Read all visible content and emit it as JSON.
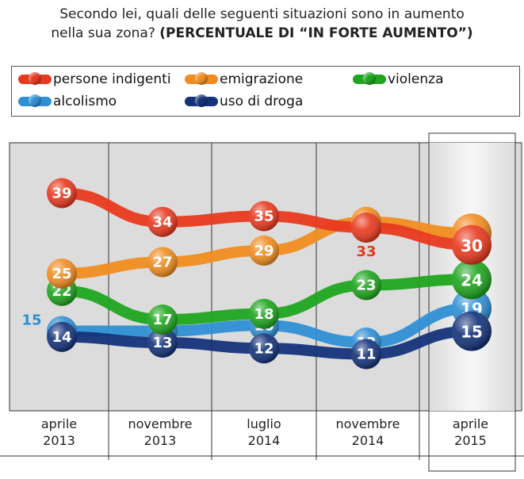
{
  "title": {
    "line1": "Secondo lei, quali delle seguenti situazioni sono in aumento",
    "line2_prefix": "nella sua zona? ",
    "line2_bold": "(PERCENTUALE DI “IN FORTE AUMENTO”)"
  },
  "legend": [
    {
      "name": "persone indigenti",
      "color": "#e8391f"
    },
    {
      "name": "emigrazione",
      "color": "#f08c20"
    },
    {
      "name": "violenza",
      "color": "#1fa51f"
    },
    {
      "name": "alcolismo",
      "color": "#2e8fd3"
    },
    {
      "name": "uso di droga",
      "color": "#14337a"
    }
  ],
  "chart_data": {
    "type": "line",
    "categories": [
      [
        "aprile",
        "2013"
      ],
      [
        "novembre",
        "2013"
      ],
      [
        "luglio",
        "2014"
      ],
      [
        "novembre",
        "2014"
      ],
      [
        "aprile",
        "2015"
      ]
    ],
    "ylim": [
      5,
      45
    ],
    "grid": "vertical separators",
    "highlight_category": 4,
    "series": [
      {
        "name": "persone indigenti",
        "color": "#e8391f",
        "values": [
          39,
          34,
          35,
          33,
          30
        ],
        "label_colors": [
          "#ffffff",
          "#ffffff",
          "#ffffff",
          "#e8391f",
          "#ffffff"
        ]
      },
      {
        "name": "emigrazione",
        "color": "#f08c20",
        "values": [
          25,
          27,
          29,
          34,
          32
        ],
        "label_colors": [
          "#ffffff",
          "#ffffff",
          "#ffffff",
          "#ffffff",
          "#ffffff"
        ]
      },
      {
        "name": "violenza",
        "color": "#1fa51f",
        "values": [
          22,
          17,
          18,
          23,
          24
        ],
        "label_colors": [
          "#ffffff",
          "#ffffff",
          "#ffffff",
          "#ffffff",
          "#ffffff"
        ]
      },
      {
        "name": "alcolismo",
        "color": "#2e8fd3",
        "values": [
          15,
          15,
          16,
          13,
          19
        ],
        "label_colors": [
          "#2e8fd3",
          "#ffffff",
          "#ffffff",
          "#ffffff",
          "#ffffff"
        ]
      },
      {
        "name": "uso di droga",
        "color": "#14337a",
        "values": [
          14,
          13,
          12,
          11,
          15
        ],
        "label_colors": [
          "#ffffff",
          "#ffffff",
          "#ffffff",
          "#ffffff",
          "#ffffff"
        ]
      }
    ]
  }
}
